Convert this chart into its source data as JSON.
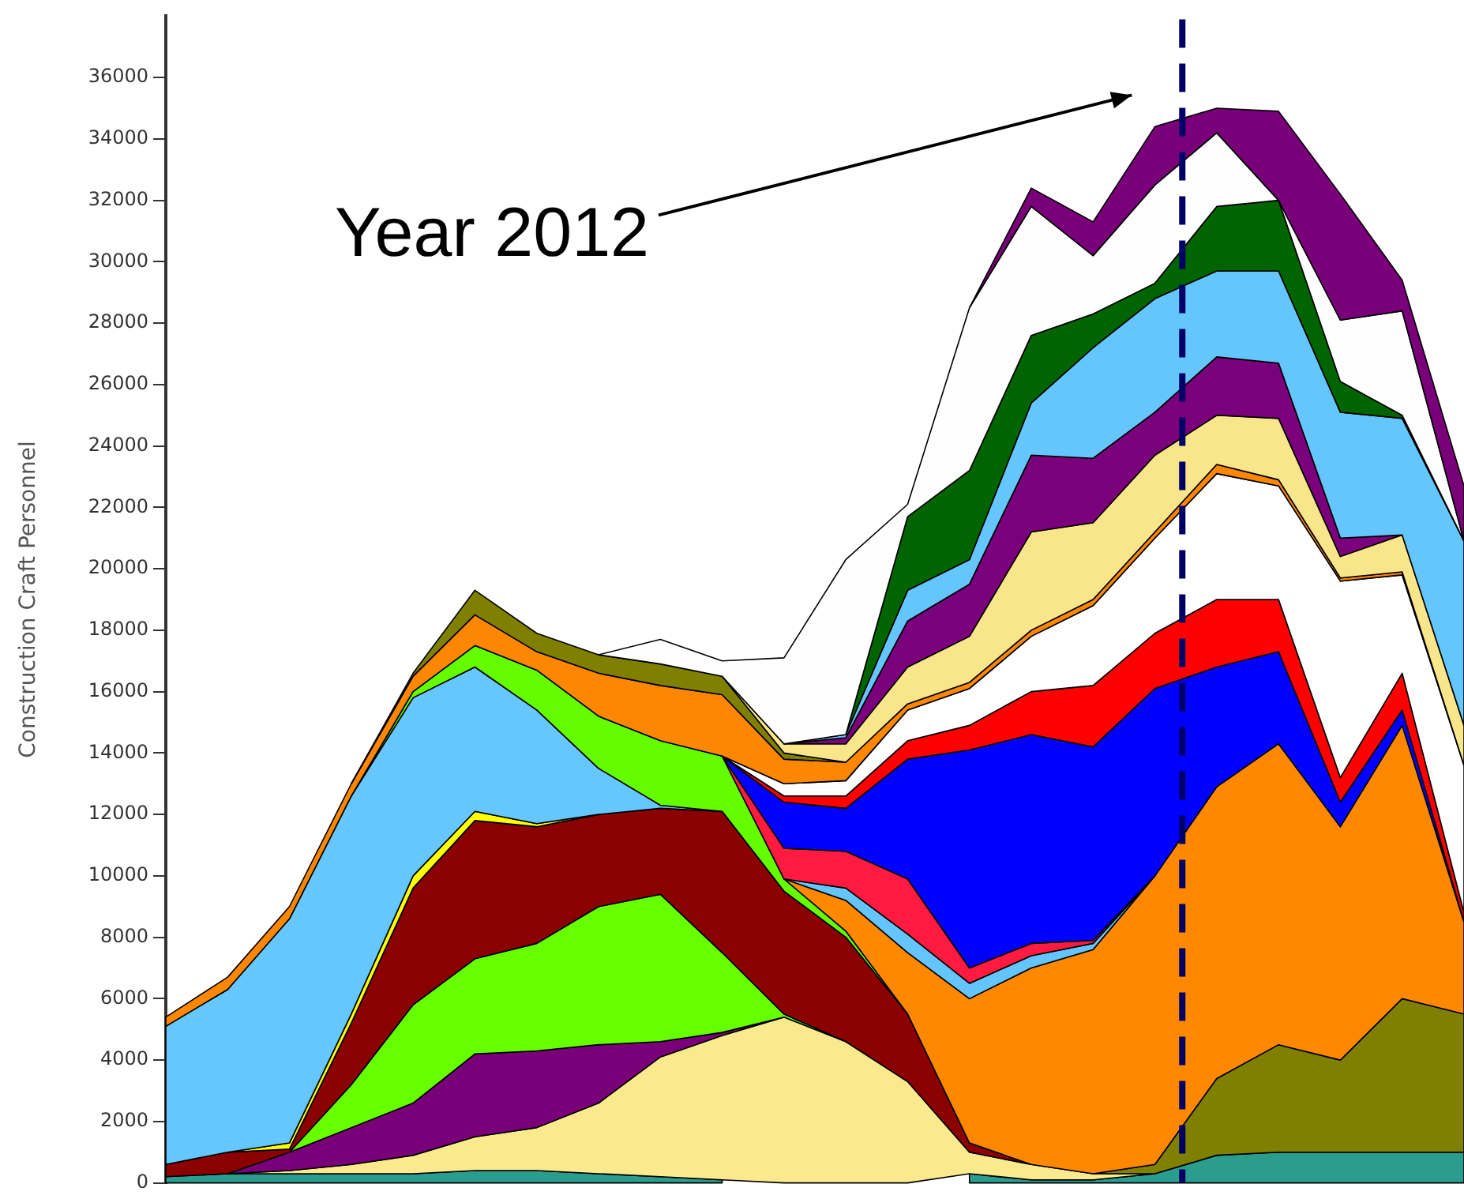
{
  "chart_data": {
    "type": "area",
    "stacked": true,
    "ylabel": "Construction Craft Personnel",
    "tick_labels": "y",
    "categories": [
      null,
      null,
      null,
      null,
      null,
      null,
      null,
      null,
      null,
      null,
      null,
      null,
      null,
      null,
      null,
      null,
      null,
      null,
      null,
      null,
      null,
      null
    ],
    "ylim": [
      0,
      38000
    ],
    "yticks": [
      0,
      2000,
      4000,
      6000,
      8000,
      10000,
      12000,
      14000,
      16000,
      18000,
      20000,
      22000,
      24000,
      26000,
      28000,
      30000,
      32000,
      34000,
      36000
    ],
    "annotations": [
      "Year 2012"
    ],
    "series": [
      {
        "color": "#2a9d8f",
        "values": [
          200,
          300,
          300,
          300,
          300,
          400,
          400,
          300,
          200,
          100,
          null,
          null,
          null,
          300,
          100,
          100,
          300,
          900,
          1000,
          1000,
          1000,
          1000
        ]
      },
      {
        "color": "#fbe98d",
        "values": [
          null,
          0,
          100,
          300,
          600,
          1100,
          1400,
          2300,
          3900,
          4700,
          5400,
          4600,
          3300,
          700,
          500,
          200,
          0,
          null,
          null,
          null,
          null,
          null
        ]
      },
      {
        "color": "#7f7f00",
        "values": [
          null,
          null,
          null,
          null,
          null,
          null,
          null,
          null,
          null,
          null,
          null,
          null,
          null,
          null,
          null,
          0,
          300,
          2500,
          3500,
          3000,
          5000,
          4500
        ]
      },
      {
        "color": "#7a007a",
        "values": [
          null,
          0,
          600,
          1200,
          1700,
          2700,
          2500,
          1900,
          500,
          100,
          0,
          null,
          null,
          null,
          null,
          null,
          null,
          null,
          null,
          null,
          null,
          null
        ]
      },
      {
        "color": "#66ff00",
        "values": [
          null,
          null,
          0,
          1400,
          3200,
          3100,
          3500,
          4500,
          4800,
          2600,
          100,
          0,
          null,
          null,
          null,
          null,
          null,
          null,
          null,
          null,
          null,
          null
        ]
      },
      {
        "color": "#8b0000",
        "values": [
          400,
          700,
          100,
          2000,
          3800,
          4500,
          3800,
          3000,
          2800,
          4600,
          4000,
          3400,
          2200,
          300,
          0,
          null,
          null,
          null,
          null,
          null,
          null,
          null
        ]
      },
      {
        "color": "#ffff00",
        "values": [
          null,
          0,
          200,
          300,
          400,
          300,
          100,
          0,
          null,
          null,
          null,
          null,
          null,
          null,
          null,
          null,
          null,
          null,
          null,
          null,
          null,
          null
        ]
      },
      {
        "color": "#66c7ff",
        "values": [
          4500,
          5300,
          7300,
          7100,
          5800,
          4700,
          3700,
          1500,
          100,
          0,
          null,
          null,
          null,
          null,
          null,
          null,
          null,
          null,
          null,
          null,
          null,
          null
        ]
      },
      {
        "color": "#64fd00",
        "values": [
          null,
          null,
          null,
          0,
          200,
          700,
          1300,
          1700,
          2100,
          1800,
          400,
          200,
          0,
          null,
          null,
          null,
          null,
          null,
          null,
          null,
          null,
          null
        ]
      },
      {
        "color": "#ff8800",
        "values": [
          null,
          null,
          null,
          null,
          null,
          null,
          null,
          null,
          null,
          null,
          0,
          1000,
          2000,
          4700,
          6400,
          7300,
          9400,
          9500,
          9800,
          7600,
          8900,
          3000
        ]
      },
      {
        "color": "#64c5fd",
        "values": [
          null,
          null,
          null,
          null,
          null,
          null,
          null,
          null,
          null,
          null,
          0,
          400,
          600,
          500,
          400,
          200,
          0,
          null,
          null,
          null,
          null,
          null
        ]
      },
      {
        "color": "#ff1a40",
        "values": [
          null,
          null,
          null,
          null,
          null,
          null,
          null,
          null,
          null,
          0,
          1000,
          1200,
          1800,
          500,
          400,
          100,
          0,
          null,
          null,
          null,
          null,
          null
        ]
      },
      {
        "color": "#0000ff",
        "values": [
          null,
          null,
          null,
          null,
          null,
          null,
          null,
          null,
          null,
          0,
          1500,
          1400,
          3900,
          7100,
          6800,
          6300,
          6100,
          3900,
          3000,
          800,
          500,
          0
        ]
      },
      {
        "color": "#ff0000",
        "values": [
          null,
          null,
          null,
          null,
          null,
          null,
          null,
          null,
          null,
          0,
          200,
          400,
          600,
          800,
          1400,
          2000,
          1800,
          2200,
          1700,
          800,
          1200,
          300
        ]
      },
      {
        "color": "#ffffff",
        "values": [
          null,
          null,
          null,
          null,
          null,
          null,
          null,
          null,
          null,
          0,
          400,
          500,
          1000,
          1200,
          1800,
          2600,
          3100,
          4100,
          3700,
          6400,
          3200,
          4800
        ]
      },
      {
        "color": "#fd8602",
        "values": [
          300,
          400,
          400,
          400,
          500,
          1000,
          600,
          1400,
          1800,
          2000,
          800,
          600,
          200,
          200,
          200,
          200,
          200,
          300,
          200,
          100,
          100,
          0
        ]
      },
      {
        "color": "#808000",
        "values": [
          null,
          null,
          null,
          0,
          100,
          800,
          600,
          600,
          700,
          600,
          200,
          0,
          null,
          null,
          null,
          null,
          null,
          null,
          null,
          null,
          null,
          null
        ]
      },
      {
        "color": "#f9e68a",
        "values": [
          null,
          null,
          null,
          null,
          null,
          null,
          null,
          null,
          null,
          0,
          300,
          600,
          1200,
          1500,
          3200,
          2500,
          2500,
          1600,
          2000,
          700,
          1200,
          1300
        ]
      },
      {
        "color": "#7b007c",
        "values": [
          null,
          null,
          null,
          null,
          null,
          null,
          null,
          null,
          null,
          null,
          0,
          200,
          1500,
          1700,
          2500,
          2100,
          1400,
          1900,
          1800,
          600,
          0,
          null
        ]
      },
      {
        "color": "#65c6fe",
        "values": [
          null,
          null,
          null,
          null,
          null,
          null,
          null,
          null,
          null,
          null,
          0,
          100,
          1000,
          800,
          1700,
          3600,
          3700,
          2800,
          3000,
          4100,
          3800,
          6000
        ]
      },
      {
        "color": "#006400",
        "values": [
          null,
          null,
          null,
          null,
          null,
          null,
          null,
          null,
          null,
          null,
          null,
          0,
          2400,
          2900,
          2200,
          1100,
          500,
          2100,
          2300,
          1000,
          100,
          0
        ]
      },
      {
        "color": "#fefefe",
        "values": [
          null,
          null,
          null,
          null,
          null,
          null,
          null,
          0,
          800,
          500,
          2800,
          5700,
          400,
          5300,
          4200,
          1900,
          3200,
          2400,
          0,
          2000,
          3400,
          0
        ]
      },
      {
        "color": "#790079",
        "values": [
          null,
          null,
          null,
          null,
          null,
          null,
          null,
          null,
          null,
          null,
          null,
          null,
          null,
          0,
          600,
          1100,
          1900,
          800,
          2900,
          4100,
          1000,
          1800
        ]
      }
    ]
  }
}
